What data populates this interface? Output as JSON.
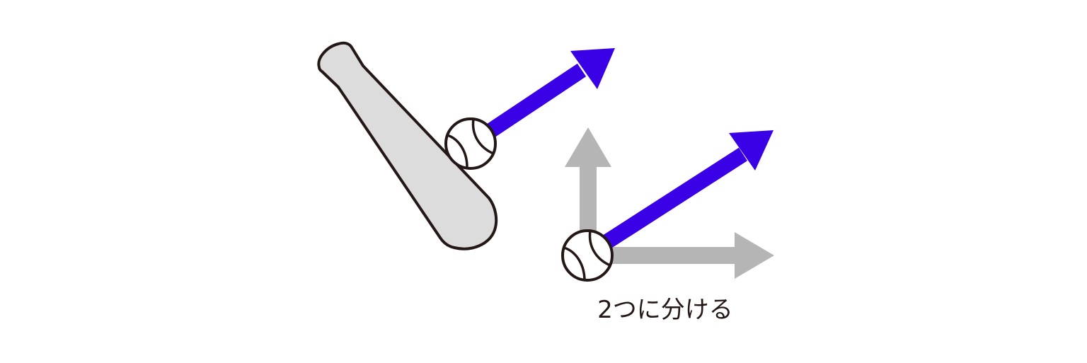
{
  "diagram": {
    "caption": "2つに分ける",
    "colors": {
      "background": "#ffffff",
      "outline": "#231815",
      "bat_fill": "#dcdcdc",
      "velocity_arrow": "#3a00e6",
      "component_arrow": "#b5b5b5",
      "ball_fill": "#ffffff"
    },
    "elements": {
      "bat": "baseball-bat",
      "hit_ball": "baseball",
      "hit_arrow": "velocity-arrow",
      "split_ball": "baseball",
      "split_arrow": "velocity-arrow",
      "vertical_component": "vertical-component-arrow",
      "horizontal_component": "horizontal-component-arrow"
    }
  }
}
